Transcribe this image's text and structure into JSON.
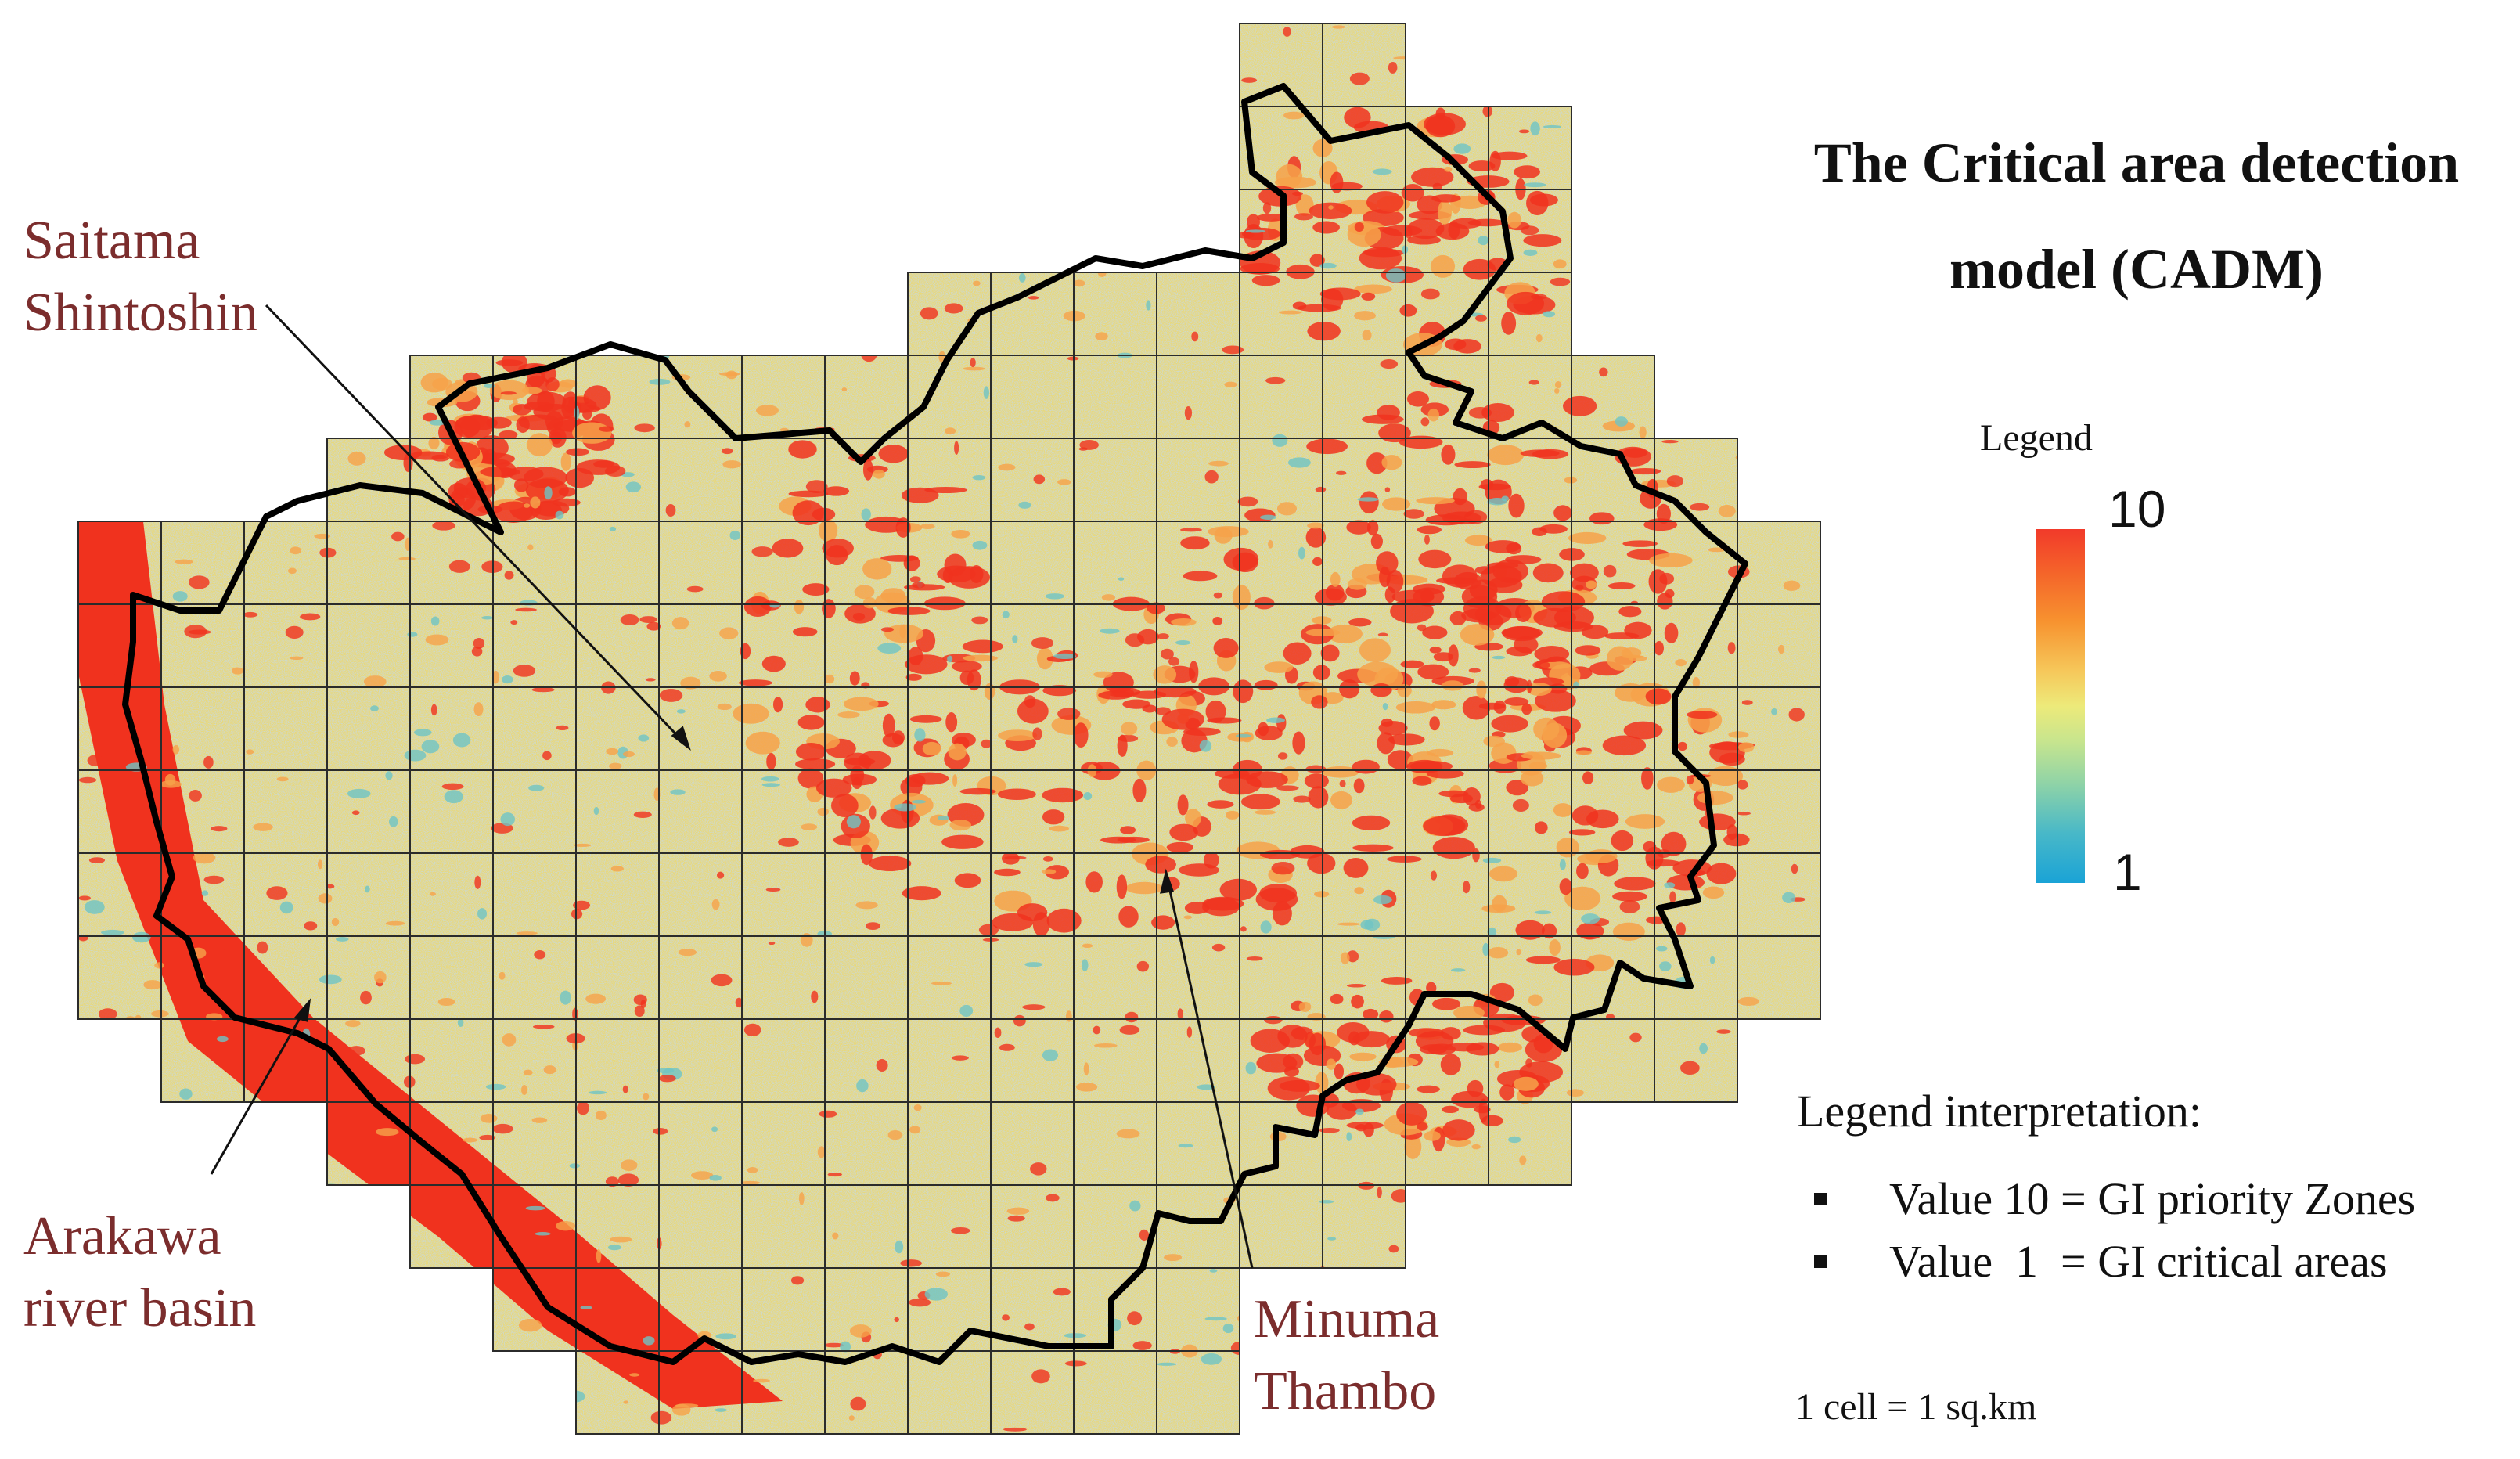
{
  "title": "The Critical area detection model (CADM)",
  "legend": {
    "title": "Legend",
    "max_label": "10",
    "min_label": "1",
    "max_value": 10,
    "min_value": 1,
    "colors": [
      "#f23a2a",
      "#f7922f",
      "#edea7a",
      "#8fd3a7",
      "#1aa3d6"
    ]
  },
  "interpretation": {
    "heading": "Legend interpretation:",
    "items": [
      "Value 10 = GI priority Zones",
      "Value  1  = GI critical areas"
    ]
  },
  "cell_note": "1 cell = 1 sq.km",
  "places": [
    {
      "id": "saitama-shintoshin",
      "lines": [
        "Saitama",
        "Shintoshin"
      ]
    },
    {
      "id": "arakawa-river-basin",
      "lines": [
        "Arakawa",
        "river basin"
      ]
    },
    {
      "id": "minuma-thambo",
      "lines": [
        "Minuma",
        "Thambo"
      ]
    }
  ],
  "map_colors": {
    "base": "#e7d87c",
    "high": "#f0321e",
    "mid": "#f6a24a",
    "low": "#6fc4c4",
    "grid": "#2b2b2b",
    "boundary": "#000000"
  }
}
